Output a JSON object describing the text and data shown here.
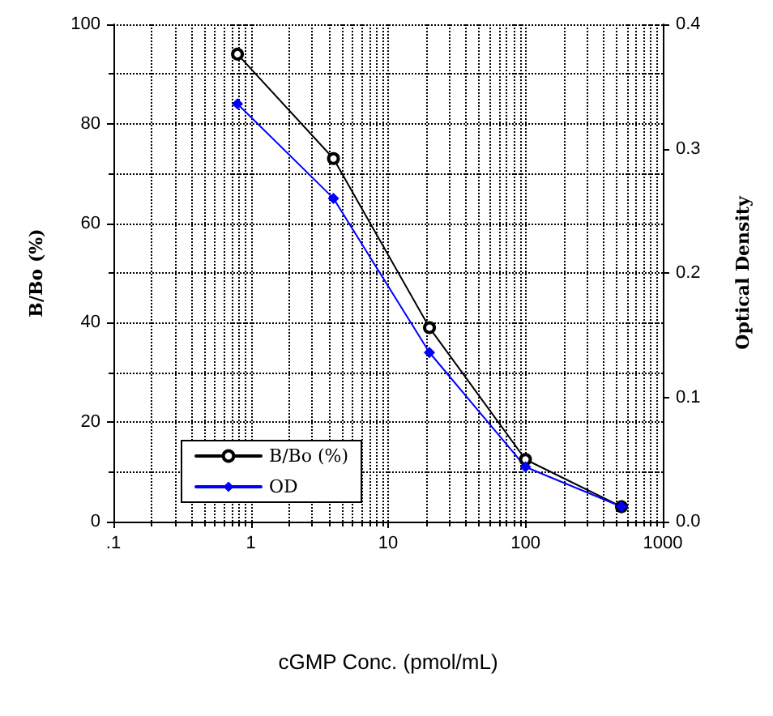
{
  "chart_data": {
    "type": "line",
    "xlabel": "cGMP Conc. (pmol/mL)",
    "ylabel": "B/Bo (%)",
    "y2label": "Optical Density",
    "x": [
      0.8,
      4,
      20,
      100,
      500
    ],
    "series": [
      {
        "name": "B/Bo (%)",
        "color": "#000000",
        "marker": "circle",
        "values": [
          94,
          73,
          39,
          12.5,
          3
        ]
      },
      {
        "name": "OD",
        "color": "#0000ff",
        "marker": "diamond",
        "axis": "y2",
        "values": [
          0.336,
          0.26,
          0.136,
          0.044,
          0.012
        ]
      }
    ],
    "log": "x",
    "xlim": [
      0.1,
      1000
    ],
    "xticks": [
      {
        "value": 0.1,
        "label": ".1"
      },
      1,
      10,
      100,
      1000
    ],
    "ylim": [
      0,
      100
    ],
    "yticks": [
      0,
      20,
      40,
      60,
      80,
      100
    ],
    "y2lim": [
      0,
      0.4
    ],
    "y2ticks": [
      {
        "value": 0,
        "label": "0.0"
      },
      0.1,
      0.2,
      0.3,
      0.4
    ],
    "grid": true,
    "legend": "bottom left",
    "line_style": "solid"
  }
}
